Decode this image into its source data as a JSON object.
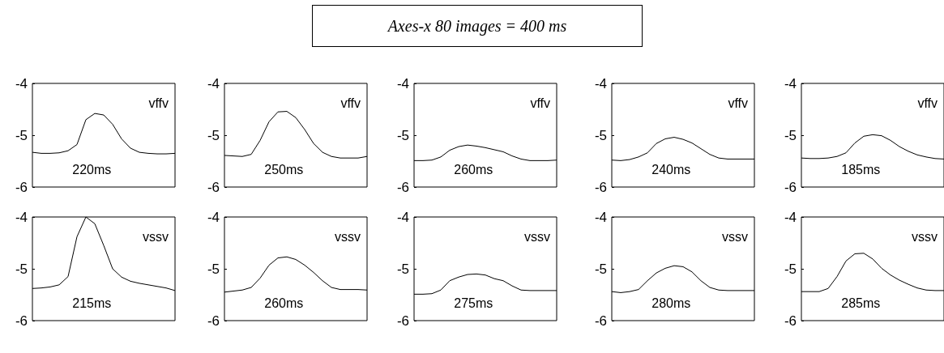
{
  "chart_data": [
    {
      "type": "line",
      "categories": [
        null,
        null,
        null,
        null,
        null,
        null,
        null,
        null,
        null,
        null,
        null,
        null,
        null,
        null,
        null,
        null,
        null
      ],
      "values": [
        -5.33,
        -5.35,
        -5.35,
        -5.34,
        -5.3,
        -5.18,
        -4.7,
        -4.58,
        -4.61,
        -4.79,
        -5.07,
        -5.25,
        -5.33,
        -5.35,
        -5.36,
        -5.36,
        -5.35
      ],
      "color": "#000000",
      "marker": "none",
      "ylim": [
        -6,
        -4
      ],
      "yticks": [
        -6,
        -5,
        -4
      ],
      "tick_labels": "y",
      "annotations": [
        "vffv",
        "220ms"
      ]
    },
    {
      "type": "line",
      "categories": [
        null,
        null,
        null,
        null,
        null,
        null,
        null,
        null,
        null,
        null,
        null,
        null,
        null,
        null,
        null,
        null,
        null
      ],
      "values": [
        -5.39,
        -5.4,
        -5.41,
        -5.37,
        -5.1,
        -4.74,
        -4.55,
        -4.54,
        -4.66,
        -4.89,
        -5.16,
        -5.33,
        -5.41,
        -5.44,
        -5.44,
        -5.44,
        -5.41
      ],
      "color": "#000000",
      "marker": "none",
      "ylim": [
        -6,
        -4
      ],
      "yticks": [
        -6,
        -5,
        -4
      ],
      "tick_labels": "y",
      "annotations": [
        "vffv",
        "250ms"
      ]
    },
    {
      "type": "line",
      "title": "Axes-x 80 images = 400 ms",
      "categories": [
        null,
        null,
        null,
        null,
        null,
        null,
        null,
        null,
        null,
        null,
        null,
        null,
        null,
        null,
        null,
        null,
        null
      ],
      "values": [
        -5.49,
        -5.49,
        -5.48,
        -5.42,
        -5.29,
        -5.22,
        -5.19,
        -5.21,
        -5.24,
        -5.28,
        -5.32,
        -5.4,
        -5.46,
        -5.49,
        -5.49,
        -5.49,
        -5.48
      ],
      "color": "#000000",
      "marker": "none",
      "ylim": [
        -6,
        -4
      ],
      "yticks": [
        -6,
        -5,
        -4
      ],
      "tick_labels": "y",
      "annotations": [
        "vffv",
        "260ms"
      ]
    },
    {
      "type": "line",
      "categories": [
        null,
        null,
        null,
        null,
        null,
        null,
        null,
        null,
        null,
        null,
        null,
        null,
        null,
        null,
        null,
        null,
        null
      ],
      "values": [
        -5.48,
        -5.49,
        -5.47,
        -5.42,
        -5.34,
        -5.16,
        -5.07,
        -5.04,
        -5.08,
        -5.15,
        -5.26,
        -5.37,
        -5.44,
        -5.46,
        -5.46,
        -5.46,
        -5.46
      ],
      "color": "#000000",
      "marker": "none",
      "ylim": [
        -6,
        -4
      ],
      "yticks": [
        -6,
        -5,
        -4
      ],
      "tick_labels": "y",
      "annotations": [
        "vffv",
        "240ms"
      ]
    },
    {
      "type": "line",
      "categories": [
        null,
        null,
        null,
        null,
        null,
        null,
        null,
        null,
        null,
        null,
        null,
        null,
        null,
        null,
        null,
        null,
        null
      ],
      "values": [
        -5.44,
        -5.45,
        -5.45,
        -5.44,
        -5.41,
        -5.34,
        -5.15,
        -5.02,
        -4.99,
        -5.01,
        -5.1,
        -5.22,
        -5.31,
        -5.38,
        -5.42,
        -5.45,
        -5.46
      ],
      "color": "#000000",
      "marker": "none",
      "ylim": [
        -6,
        -4
      ],
      "yticks": [
        -6,
        -5,
        -4
      ],
      "tick_labels": "y",
      "annotations": [
        "vffv",
        "185ms"
      ]
    },
    {
      "type": "line",
      "categories": [
        null,
        null,
        null,
        null,
        null,
        null,
        null,
        null,
        null,
        null,
        null,
        null,
        null,
        null,
        null,
        null,
        null
      ],
      "values": [
        -5.38,
        -5.37,
        -5.35,
        -5.31,
        -5.15,
        -4.38,
        -4.0,
        -4.13,
        -4.55,
        -5.0,
        -5.16,
        -5.24,
        -5.28,
        -5.31,
        -5.34,
        -5.37,
        -5.42
      ],
      "color": "#000000",
      "marker": "none",
      "ylim": [
        -6,
        -4
      ],
      "yticks": [
        -6,
        -5,
        -4
      ],
      "tick_labels": "y",
      "annotations": [
        "vssv",
        "215ms"
      ]
    },
    {
      "type": "line",
      "categories": [
        null,
        null,
        null,
        null,
        null,
        null,
        null,
        null,
        null,
        null,
        null,
        null,
        null,
        null,
        null,
        null,
        null
      ],
      "values": [
        -5.45,
        -5.43,
        -5.41,
        -5.36,
        -5.18,
        -4.93,
        -4.79,
        -4.77,
        -4.82,
        -4.93,
        -5.07,
        -5.23,
        -5.36,
        -5.4,
        -5.4,
        -5.4,
        -5.41
      ],
      "color": "#000000",
      "marker": "none",
      "ylim": [
        -6,
        -4
      ],
      "yticks": [
        -6,
        -5,
        -4
      ],
      "tick_labels": "y",
      "annotations": [
        "vssv",
        "260ms"
      ]
    },
    {
      "type": "line",
      "categories": [
        null,
        null,
        null,
        null,
        null,
        null,
        null,
        null,
        null,
        null,
        null,
        null,
        null,
        null,
        null,
        null,
        null
      ],
      "values": [
        -5.49,
        -5.49,
        -5.48,
        -5.41,
        -5.23,
        -5.16,
        -5.11,
        -5.1,
        -5.12,
        -5.19,
        -5.23,
        -5.33,
        -5.41,
        -5.42,
        -5.42,
        -5.42,
        -5.42
      ],
      "color": "#000000",
      "marker": "none",
      "ylim": [
        -6,
        -4
      ],
      "yticks": [
        -6,
        -5,
        -4
      ],
      "tick_labels": "y",
      "annotations": [
        "vssv",
        "275ms"
      ]
    },
    {
      "type": "line",
      "categories": [
        null,
        null,
        null,
        null,
        null,
        null,
        null,
        null,
        null,
        null,
        null,
        null,
        null,
        null,
        null,
        null,
        null
      ],
      "values": [
        -5.44,
        -5.46,
        -5.44,
        -5.4,
        -5.23,
        -5.08,
        -4.99,
        -4.94,
        -4.96,
        -5.06,
        -5.23,
        -5.36,
        -5.41,
        -5.42,
        -5.42,
        -5.42,
        -5.42
      ],
      "color": "#000000",
      "marker": "none",
      "ylim": [
        -6,
        -4
      ],
      "yticks": [
        -6,
        -5,
        -4
      ],
      "tick_labels": "y",
      "annotations": [
        "vssv",
        "280ms"
      ]
    },
    {
      "type": "line",
      "categories": [
        null,
        null,
        null,
        null,
        null,
        null,
        null,
        null,
        null,
        null,
        null,
        null,
        null,
        null,
        null,
        null,
        null
      ],
      "values": [
        -5.44,
        -5.44,
        -5.44,
        -5.38,
        -5.15,
        -4.85,
        -4.71,
        -4.7,
        -4.81,
        -4.99,
        -5.12,
        -5.22,
        -5.3,
        -5.37,
        -5.41,
        -5.42,
        -5.42
      ],
      "color": "#000000",
      "marker": "none",
      "ylim": [
        -6,
        -4
      ],
      "yticks": [
        -6,
        -5,
        -4
      ],
      "tick_labels": "y",
      "annotations": [
        "vssv",
        "285ms"
      ]
    }
  ]
}
